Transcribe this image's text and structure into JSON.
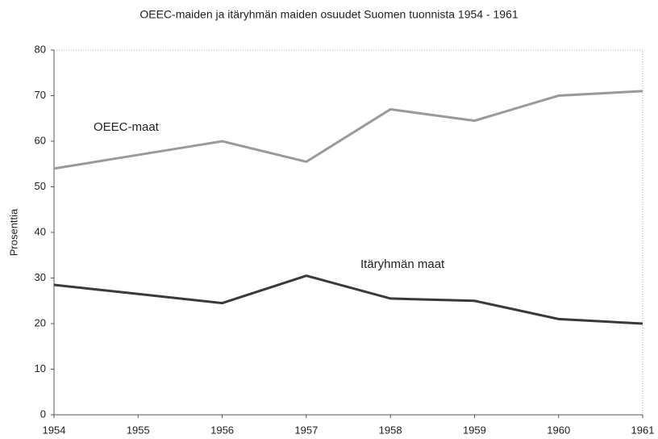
{
  "chart_data": {
    "type": "line",
    "title": "OEEC-maiden ja itäryhmän maiden osuudet Suomen tuonnista 1954 - 1961",
    "y_label": "Prosenttia",
    "x": [
      1954,
      1955,
      1956,
      1957,
      1958,
      1959,
      1960,
      1961
    ],
    "xlim": [
      1954,
      1961
    ],
    "xticks": [
      1954,
      1955,
      1956,
      1957,
      1958,
      1959,
      1960,
      1961
    ],
    "ylim": [
      0,
      80
    ],
    "yticks": [
      0,
      10,
      20,
      30,
      40,
      50,
      60,
      70,
      80
    ],
    "series": [
      {
        "name": "OEEC-maat",
        "color": "#9a9a9a",
        "values": [
          54,
          57,
          60,
          55.5,
          67,
          64.5,
          70,
          71
        ]
      },
      {
        "name": "Itäryhmän maat",
        "color": "#3a3a3a",
        "values": [
          28.5,
          26.5,
          24.5,
          30.5,
          25.5,
          25,
          21,
          20
        ]
      }
    ]
  }
}
